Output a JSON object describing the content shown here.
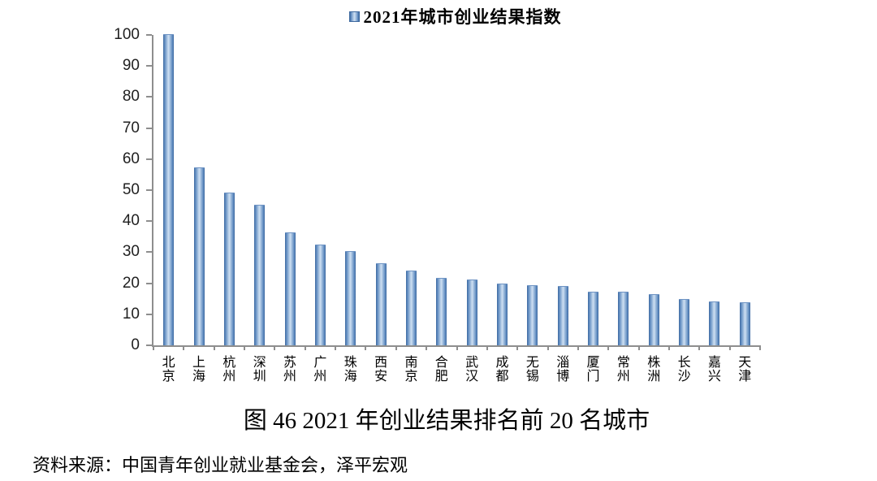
{
  "page": {
    "background_color": "#ffffff",
    "text_color": "#000000",
    "axis_color": "#8e8e8e"
  },
  "legend": {
    "swatch_icon": "blue-gradient-square",
    "label": "2021年城市创业结果指数"
  },
  "chart_data": {
    "type": "bar",
    "title": "2021年城市创业结果指数",
    "legend_entries": [
      "2021年城市创业结果指数"
    ],
    "legend_position": "top-center",
    "grid": false,
    "categories": [
      "北京",
      "上海",
      "杭州",
      "深圳",
      "苏州",
      "广州",
      "珠海",
      "西安",
      "南京",
      "合肥",
      "武汉",
      "成都",
      "无锡",
      "淄博",
      "厦门",
      "常州",
      "株洲",
      "长沙",
      "嘉兴",
      "天津"
    ],
    "values": [
      100,
      57,
      48.9,
      44.9,
      36,
      32.2,
      30,
      26.3,
      23.7,
      21.4,
      20.9,
      19.7,
      19.1,
      18.9,
      17.1,
      16.9,
      16.2,
      14.7,
      13.8,
      13.5
    ],
    "xlabel": "",
    "ylabel": "",
    "ylim": [
      0,
      100
    ],
    "yticks": [
      0,
      10,
      20,
      30,
      40,
      50,
      60,
      70,
      80,
      90,
      100
    ],
    "bar_color_edge": "#3e699f",
    "bar_color_center": "#cfe0f2"
  },
  "caption": "图 46 2021 年创业结果排名前 20 名城市",
  "source": "资料来源：中国青年创业就业基金会，泽平宏观"
}
